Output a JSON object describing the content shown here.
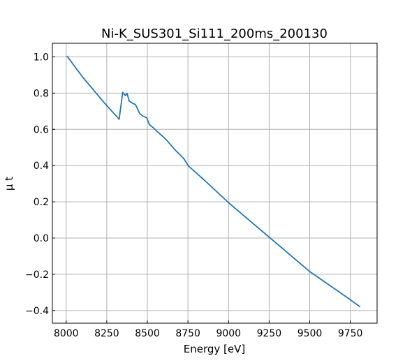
{
  "chart_data": {
    "type": "line",
    "title": "Ni-K_SUS301_Si111_200ms_200130",
    "xlabel": "Energy [eV]",
    "ylabel": "μ t",
    "xlim": [
      7915,
      9915
    ],
    "ylim": [
      -0.47,
      1.075
    ],
    "xticks": [
      8000,
      8250,
      8500,
      8750,
      9000,
      9250,
      9500,
      9750
    ],
    "yticks": [
      -0.4,
      -0.2,
      0.0,
      0.2,
      0.4,
      0.6,
      0.8,
      1.0
    ],
    "xtick_labels": [
      "8000",
      "8250",
      "8500",
      "8750",
      "9000",
      "9250",
      "9500",
      "9750"
    ],
    "ytick_labels": [
      "−0.4",
      "−0.2",
      "0.0",
      "0.2",
      "0.4",
      "0.6",
      "0.8",
      "1.0"
    ],
    "grid": true,
    "series": [
      {
        "name": "mu t",
        "color": "#1f77b4",
        "x": [
          8005,
          8100,
          8237,
          8326,
          8348,
          8365,
          8375,
          8388,
          8409,
          8427,
          8453,
          8474,
          8496,
          8513,
          8534,
          8565,
          8595,
          8625,
          8668,
          8724,
          8754,
          8841,
          9000,
          9250,
          9500,
          9750,
          9810
        ],
        "y": [
          1.005,
          0.89,
          0.744,
          0.656,
          0.804,
          0.786,
          0.799,
          0.756,
          0.744,
          0.737,
          0.687,
          0.672,
          0.664,
          0.626,
          0.611,
          0.584,
          0.561,
          0.534,
          0.489,
          0.439,
          0.397,
          0.328,
          0.195,
          0.005,
          -0.185,
          -0.34,
          -0.38
        ]
      }
    ]
  }
}
